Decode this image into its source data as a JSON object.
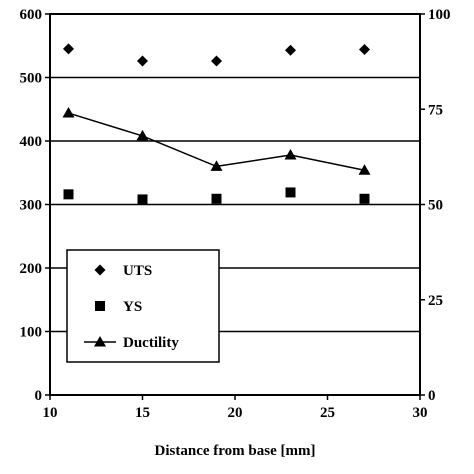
{
  "chart_data": {
    "type": "scatter",
    "xlabel": "Distance from base [mm]",
    "xlim": [
      10,
      30
    ],
    "x_ticks": [
      "10",
      "15",
      "20",
      "25",
      "30"
    ],
    "ylim_left": [
      0,
      600
    ],
    "y_ticks_left": [
      "0",
      "100",
      "200",
      "300",
      "400",
      "500",
      "600"
    ],
    "ylim_right": [
      0,
      100
    ],
    "y_ticks_right": [
      "0",
      "25",
      "50",
      "75",
      "100"
    ],
    "grid": "horizontal",
    "legend_position": "bottom-left",
    "x": [
      11,
      15,
      19,
      23,
      27
    ],
    "series": [
      {
        "name": "UTS",
        "marker": "diamond",
        "axis": "left",
        "line": false,
        "values": [
          545,
          526,
          526,
          543,
          544
        ]
      },
      {
        "name": "YS",
        "marker": "square",
        "axis": "left",
        "line": false,
        "values": [
          316,
          308,
          309,
          319,
          309
        ]
      },
      {
        "name": "Ductility",
        "marker": "triangle",
        "axis": "right",
        "line": true,
        "values": [
          74,
          68,
          60,
          63,
          59
        ]
      }
    ],
    "colors": {
      "ink": "#000000",
      "background": "#ffffff"
    }
  }
}
